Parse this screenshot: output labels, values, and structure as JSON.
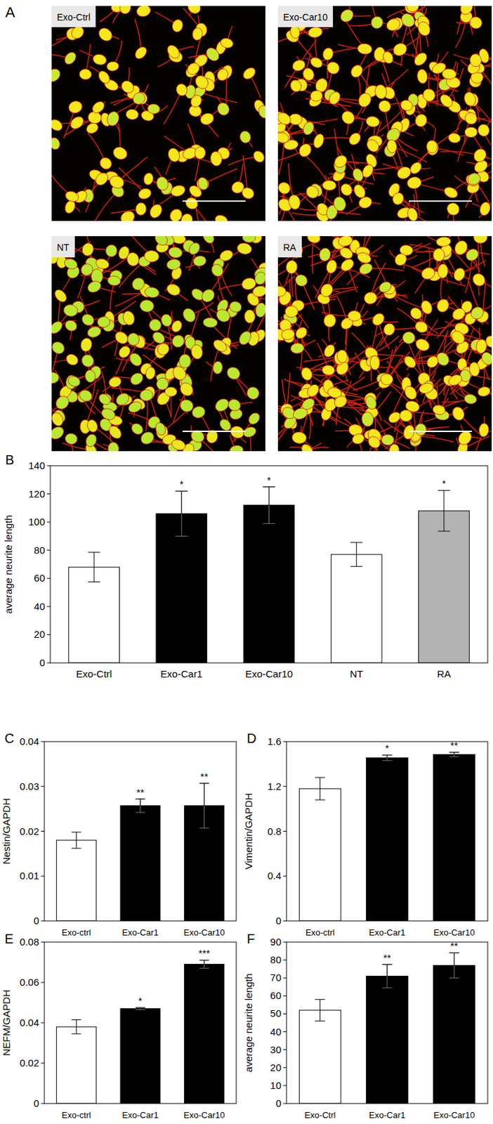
{
  "panel_a": {
    "label": "A",
    "images": [
      "Exo-Ctrl",
      "Exo-Car10",
      "NT",
      "RA"
    ]
  },
  "chart_data": [
    {
      "type": "bar",
      "title": "B",
      "y_label": "average neurite length",
      "categories": [
        "Exo-Ctrl",
        "Exo-Car1",
        "Exo-Car10",
        "NT",
        "RA"
      ],
      "values": [
        68,
        106,
        112,
        77,
        108
      ],
      "errors": [
        10.5,
        16,
        13,
        8.5,
        14.5
      ],
      "significance": [
        null,
        "*",
        "*",
        null,
        "*"
      ],
      "colors": [
        "#ffffff",
        "#000000",
        "#000000",
        "#ffffff",
        "#b3b3b3"
      ],
      "ylim": [
        0,
        140
      ],
      "yticks": [
        0,
        20,
        40,
        60,
        80,
        100,
        120,
        140
      ]
    },
    {
      "type": "bar",
      "title": "C",
      "y_label": "Nestin/GAPDH",
      "categories": [
        "Exo-ctrl",
        "Exo-Car1",
        "Exo-Car10"
      ],
      "values": [
        0.018,
        0.0257,
        0.0257
      ],
      "errors": [
        0.0018,
        0.0015,
        0.005
      ],
      "significance": [
        null,
        "**",
        "**"
      ],
      "colors": [
        "#ffffff",
        "#000000",
        "#000000"
      ],
      "ylim": [
        0,
        0.04
      ],
      "yticks": [
        0,
        0.01,
        0.02,
        0.03,
        0.04
      ]
    },
    {
      "type": "bar",
      "title": "D",
      "y_label": "Vimentin/GAPDH",
      "categories": [
        "Exo-ctrl",
        "Exo-Car1",
        "Exo-Car10"
      ],
      "values": [
        1.18,
        1.455,
        1.485
      ],
      "errors": [
        0.1,
        0.025,
        0.02
      ],
      "significance": [
        null,
        "*",
        "**"
      ],
      "colors": [
        "#ffffff",
        "#000000",
        "#000000"
      ],
      "ylim": [
        0,
        1.6
      ],
      "yticks": [
        0,
        0.4,
        0.8,
        1.2,
        1.6
      ]
    },
    {
      "type": "bar",
      "title": "E",
      "y_label": "NEFM/GAPDH",
      "categories": [
        "Exo-ctrl",
        "Exo-Car1",
        "Exo-Car10"
      ],
      "values": [
        0.038,
        0.047,
        0.069
      ],
      "errors": [
        0.0035,
        0.0005,
        0.002
      ],
      "significance": [
        null,
        "*",
        "***"
      ],
      "colors": [
        "#ffffff",
        "#000000",
        "#000000"
      ],
      "ylim": [
        0,
        0.08
      ],
      "yticks": [
        0,
        0.02,
        0.04,
        0.06,
        0.08
      ]
    },
    {
      "type": "bar",
      "title": "F",
      "y_label": "average neurite length",
      "categories": [
        "Exo-Ctrl",
        "Exo-Car1",
        "Exo-Car10"
      ],
      "values": [
        52,
        71,
        77
      ],
      "errors": [
        6,
        6.5,
        7
      ],
      "significance": [
        null,
        "**",
        "**"
      ],
      "colors": [
        "#ffffff",
        "#000000",
        "#000000"
      ],
      "ylim": [
        0,
        90
      ],
      "yticks": [
        0,
        10,
        20,
        30,
        40,
        50,
        60,
        70,
        80,
        90
      ]
    }
  ]
}
